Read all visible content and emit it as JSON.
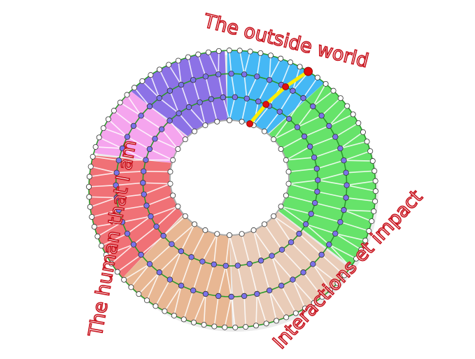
{
  "labels": {
    "top": "The outside world",
    "left": "The human that I am",
    "right": "Interactions et impact"
  },
  "colors": {
    "sectors": [
      "#45b8f5",
      "#66e36a",
      "#e9ccb8",
      "#e8b793",
      "#f07176",
      "#f5a5ee",
      "#8c72e6"
    ],
    "ring_line": "#2a9a2a",
    "spoke": "#ffffff",
    "outer_node": "#ffffff",
    "mid_node": "#7b72ea",
    "highlight_path": "#ffee00",
    "highlight_node": "#e01010",
    "label": "#c8141e"
  }
}
